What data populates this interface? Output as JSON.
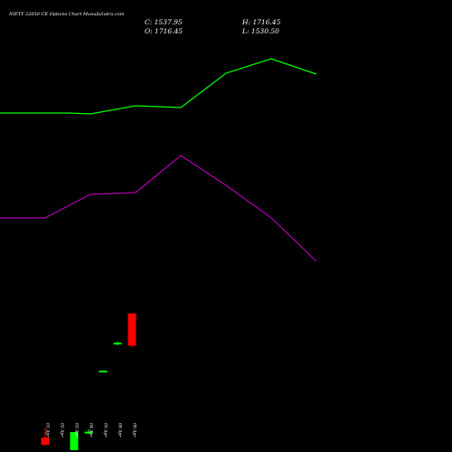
{
  "header": {
    "title": "NIFTY 22650  CE Options  Chart MunafaSutra.com",
    "close": "C: 1537.95",
    "open": "O: 1716.45",
    "high": "H: 1716.45",
    "low": "L: 1530.50"
  },
  "colors": {
    "background": "#000000",
    "up": "#00ff00",
    "down": "#ff0000",
    "upper_line": "#00ff00",
    "lower_line": "#b000b0",
    "text": "#ffffff"
  },
  "chart_data": {
    "type": "candlestick",
    "grid": false,
    "legend": "none",
    "categories": [
      "01 Apr",
      "02 Apr",
      "03 Apr",
      "04 Apr",
      "05 Apr",
      "08 Apr",
      "09 Apr"
    ],
    "candles": [
      {
        "label": "01 Apr",
        "open": 1030,
        "high": 1085,
        "low": 985,
        "close": 990,
        "color": "red"
      },
      {
        "label": "02 Apr",
        "open": 920,
        "high": 945,
        "low": 905,
        "close": 945,
        "color": "green"
      },
      {
        "label": "03 Apr",
        "open": 960,
        "high": 1060,
        "low": 960,
        "close": 1060,
        "color": "green"
      },
      {
        "label": "04 Apr",
        "open": 1055,
        "high": 1075,
        "low": 1050,
        "close": 1062,
        "color": "green"
      },
      {
        "label": "05 Apr",
        "open": 1395,
        "high": 1402,
        "low": 1392,
        "close": 1400,
        "color": "green"
      },
      {
        "label": "08 Apr",
        "open": 1545,
        "high": 1560,
        "low": 1540,
        "close": 1555,
        "color": "green"
      },
      {
        "label": "09 Apr",
        "open": 1716.45,
        "high": 1716.45,
        "low": 1530.5,
        "close": 1537.95,
        "color": "red"
      }
    ],
    "upper_band": [
      {
        "x": 0,
        "y": 2770
      },
      {
        "x": 1.5,
        "y": 2770
      },
      {
        "x": 2,
        "y": 2765
      },
      {
        "x": 3,
        "y": 2810
      },
      {
        "x": 4,
        "y": 2800
      },
      {
        "x": 5,
        "y": 2990
      },
      {
        "x": 6,
        "y": 3070
      },
      {
        "x": 7,
        "y": 2985
      }
    ],
    "lower_band": [
      {
        "x": 0,
        "y": 2190
      },
      {
        "x": 1,
        "y": 2190
      },
      {
        "x": 2,
        "y": 2320
      },
      {
        "x": 3,
        "y": 2330
      },
      {
        "x": 4,
        "y": 2535
      },
      {
        "x": 5,
        "y": 2370
      },
      {
        "x": 6,
        "y": 2190
      },
      {
        "x": 7,
        "y": 1950
      }
    ]
  }
}
